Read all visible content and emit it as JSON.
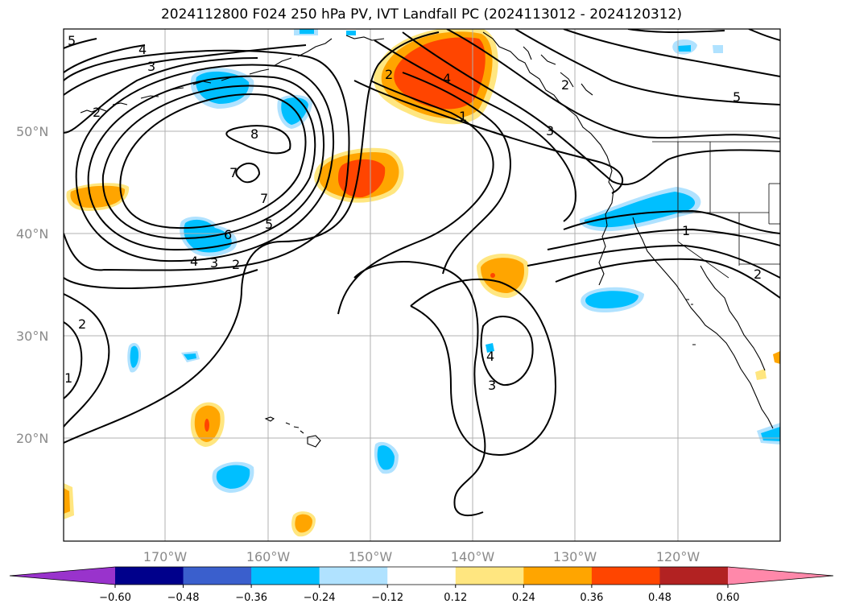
{
  "title": "2024112800 F024 250 hPa PV, IVT Landfall PC (2024113012 - 2024120312)",
  "axes": {
    "lat_labels": [
      "50°N",
      "40°N",
      "30°N",
      "20°N"
    ],
    "lon_labels": [
      "170°W",
      "160°W",
      "150°W",
      "140°W",
      "130°W",
      "120°W"
    ]
  },
  "colorbar": {
    "tick_labels": [
      "−0.60",
      "−0.48",
      "−0.36",
      "−0.24",
      "−0.12",
      "0.12",
      "0.24",
      "0.36",
      "0.48",
      "0.60"
    ],
    "colors": [
      "#9933cc",
      "#00008b",
      "#3a5fcd",
      "#00bfff",
      "#b0e2ff",
      "#ffffff",
      "#ffe680",
      "#ffa500",
      "#ff4500",
      "#b22222",
      "#ff88aa"
    ]
  },
  "contour_labels": [
    "5",
    "4",
    "3",
    "2",
    "2",
    "8",
    "7",
    "7",
    "6",
    "5",
    "4",
    "3",
    "2",
    "2",
    "4",
    "1",
    "3",
    "5",
    "1",
    "2",
    "2",
    "1",
    "3",
    "4"
  ],
  "colors": {
    "positive": "#ffa500",
    "positive_strong": "#ff4500",
    "negative": "#00bfff",
    "contour": "#000000",
    "grid": "#b0b0b0"
  }
}
